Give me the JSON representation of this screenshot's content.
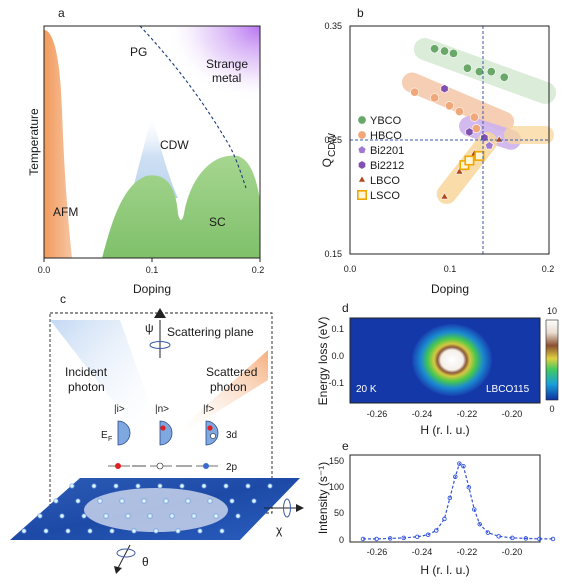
{
  "panels": {
    "a": {
      "letter": "a",
      "xlabel": "Doping",
      "ylabel": "Temperature",
      "xticks": [
        "0.0",
        "0.1",
        "0.2"
      ],
      "regions": {
        "afm": "AFM",
        "pg": "PG",
        "strange": "Strange",
        "metal": "metal",
        "cdw": "CDW",
        "sc": "SC"
      }
    },
    "b": {
      "letter": "b",
      "xlabel": "Doping",
      "ylabel_main": "Q",
      "ylabel_sub": "CDW",
      "xticks": [
        "0.0",
        "0.1",
        "0.2"
      ],
      "yticks": [
        "0.15",
        "0.25",
        "0.35"
      ]
    },
    "c": {
      "letter": "c",
      "psi": "ψ",
      "scattering_plane": "Scattering plane",
      "incident_1": "Incident",
      "incident_2": "photon",
      "scattered_1": "Scattered",
      "scattered_2": "photon",
      "state_i": "|i>",
      "state_n": "|n>",
      "state_f": "|f>",
      "ef": "E",
      "ef_sub": "F",
      "level_3d": "3d",
      "level_2p": "2p",
      "theta": "θ",
      "chi": "χ"
    },
    "d": {
      "letter": "d",
      "ylabel": "Energy loss (eV)",
      "xlabel": "H (r. l. u.)",
      "yticks": [
        "0.1",
        "0.0",
        "-0.1"
      ],
      "xticks": [
        "-0.26",
        "-0.24",
        "-0.22",
        "-0.20"
      ],
      "temp": "20 K",
      "sample": "LBCO115",
      "colorbar_max": "10",
      "colorbar_min": "0"
    },
    "e": {
      "letter": "e",
      "ylabel": "Intensity (s⁻¹)",
      "xlabel": "H (r. l. u.)",
      "yticks": [
        "150",
        "100",
        "50",
        "0"
      ],
      "xticks": [
        "-0.26",
        "-0.24",
        "-0.22",
        "-0.20"
      ]
    }
  },
  "chart_data": [
    {
      "type": "scatter",
      "xlabel": "Doping",
      "ylabel": "Q_CDW",
      "xlim": [
        0.0,
        0.2
      ],
      "ylim": [
        0.15,
        0.35
      ],
      "reference_lines": {
        "x": 0.125,
        "y": 0.25
      },
      "series": [
        {
          "name": "YBCO",
          "color": "#6aa86a",
          "marker": "circle",
          "x": [
            0.085,
            0.095,
            0.104,
            0.118,
            0.13,
            0.142,
            0.155
          ],
          "y": [
            0.33,
            0.328,
            0.326,
            0.313,
            0.31,
            0.31,
            0.305
          ]
        },
        {
          "name": "HBCO",
          "color": "#f0a87a",
          "marker": "circle",
          "x": [
            0.065,
            0.085,
            0.1,
            0.11,
            0.125,
            0.127
          ],
          "y": [
            0.292,
            0.287,
            0.28,
            0.275,
            0.27,
            0.26
          ]
        },
        {
          "name": "Bi2201",
          "color": "#a07ad0",
          "marker": "pentagon",
          "x": [
            0.14
          ],
          "y": [
            0.245
          ]
        },
        {
          "name": "Bi2212",
          "color": "#8050b0",
          "marker": "hexagon",
          "x": [
            0.095,
            0.12,
            0.135
          ],
          "y": [
            0.295,
            0.257,
            0.252
          ]
        },
        {
          "name": "LBCO",
          "color": "#b0481a",
          "marker": "triangle",
          "x": [
            0.095,
            0.11,
            0.115,
            0.125,
            0.15
          ],
          "y": [
            0.2,
            0.222,
            0.225,
            0.238,
            0.25
          ]
        },
        {
          "name": "LSCO",
          "color": "#f0a800",
          "marker": "square",
          "x": [
            0.115,
            0.12,
            0.13
          ],
          "y": [
            0.228,
            0.232,
            0.236
          ]
        }
      ]
    },
    {
      "type": "line",
      "xlabel": "H (r. l. u.)",
      "ylabel": "Intensity (s⁻¹)",
      "xlim": [
        -0.26,
        -0.19
      ],
      "ylim": [
        0,
        150
      ],
      "series": [
        {
          "name": "",
          "color": "#3355dd",
          "x": [
            -0.26,
            -0.255,
            -0.25,
            -0.245,
            -0.24,
            -0.236,
            -0.233,
            -0.23,
            -0.228,
            -0.226,
            -0.2245,
            -0.223,
            -0.221,
            -0.219,
            -0.217,
            -0.214,
            -0.21,
            -0.205,
            -0.2,
            -0.195,
            -0.19
          ],
          "y": [
            2,
            2,
            3,
            4,
            6,
            10,
            18,
            40,
            80,
            120,
            145,
            140,
            100,
            58,
            30,
            14,
            7,
            4,
            3,
            2,
            2
          ]
        }
      ]
    }
  ]
}
